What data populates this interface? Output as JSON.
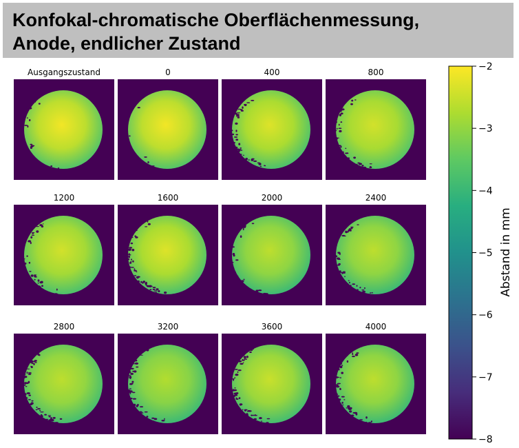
{
  "title": {
    "line1": "Konfokal-chromatische Oberflächenmessung,",
    "line2": "Anode, endlicher Zustand"
  },
  "chart_data": {
    "type": "heatmap",
    "colormap": "viridis",
    "background_color": "#440154",
    "panels": [
      {
        "label": "Ausgangszustand",
        "center_value": -2.1,
        "edge_value": -3.6,
        "edge_damage": 0.15
      },
      {
        "label": "0",
        "center_value": -2.1,
        "edge_value": -3.6,
        "edge_damage": 0.05
      },
      {
        "label": "400",
        "center_value": -2.3,
        "edge_value": -3.7,
        "edge_damage": 0.45
      },
      {
        "label": "800",
        "center_value": -2.4,
        "edge_value": -3.6,
        "edge_damage": 0.4
      },
      {
        "label": "1200",
        "center_value": -2.4,
        "edge_value": -3.7,
        "edge_damage": 0.35
      },
      {
        "label": "1600",
        "center_value": -2.3,
        "edge_value": -3.7,
        "edge_damage": 0.55
      },
      {
        "label": "2000",
        "center_value": -2.6,
        "edge_value": -3.9,
        "edge_damage": 0.2
      },
      {
        "label": "2400",
        "center_value": -2.6,
        "edge_value": -3.9,
        "edge_damage": 0.45
      },
      {
        "label": "2800",
        "center_value": -2.6,
        "edge_value": -3.8,
        "edge_damage": 0.6
      },
      {
        "label": "3200",
        "center_value": -2.7,
        "edge_value": -3.9,
        "edge_damage": 0.45
      },
      {
        "label": "3600",
        "center_value": -2.5,
        "edge_value": -3.8,
        "edge_damage": 0.6
      },
      {
        "label": "4000",
        "center_value": -2.6,
        "edge_value": -3.9,
        "edge_damage": 0.5
      }
    ],
    "colorbar": {
      "label": "Abstand in mm",
      "range": [
        -8,
        -2
      ],
      "ticks": [
        -2,
        -3,
        -4,
        -5,
        -6,
        -7,
        -8
      ],
      "tick_labels": [
        "−2",
        "−3",
        "−4",
        "−5",
        "−6",
        "−7",
        "−8"
      ]
    }
  }
}
